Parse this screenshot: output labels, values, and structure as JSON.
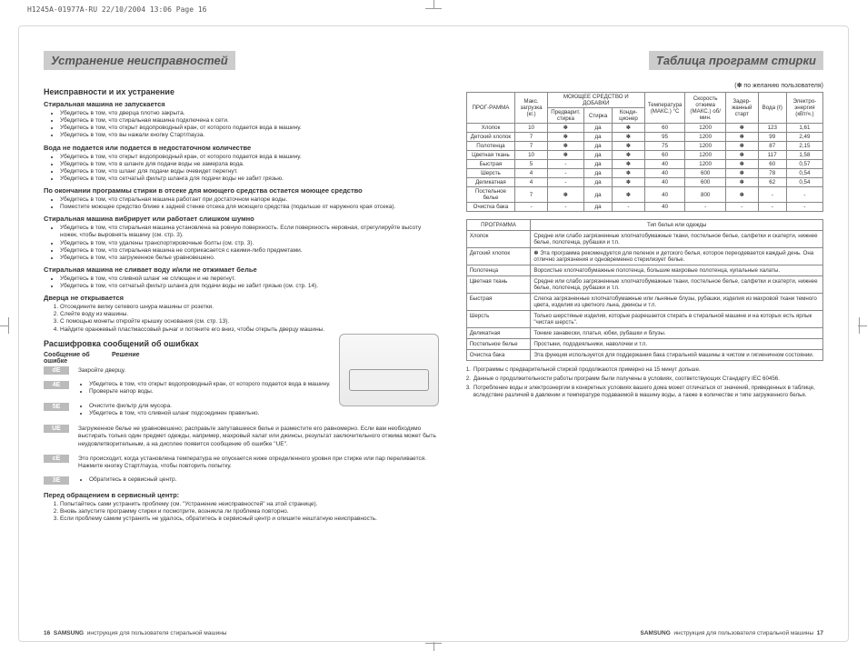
{
  "header_meta": "H1245A-01977A-RU  22/10/2004  13:06  Page 16",
  "section_left_title": "Устранение неисправностей",
  "section_right_title": "Таблица программ стирки",
  "left": {
    "h3_1": "Неисправности и их устранение",
    "p1": "Стиральная машина не запускается",
    "p1_items": [
      "Убедитесь в том, что дверца плотно закрыта.",
      "Убедитесь в том, что стиральная машина подключена к сети.",
      "Убедитесь в том, что открыт водопроводный кран, от которого подается вода в машину.",
      "Убедитесь в том, что вы нажали кнопку Старт/пауза."
    ],
    "p2": "Вода не подается или подается в недостаточном количестве",
    "p2_items": [
      "Убедитесь в том, что открыт водопроводный кран, от которого подается вода в машину.",
      "Убедитесь в том, что в шланге для подачи воды не замерзла вода.",
      "Убедитесь в том, что шланг для подачи воды очевидет перегнут.",
      "Убедитесь в том, что сетчатый фильтр шланга для подачи воды не забит грязью."
    ],
    "p3": "По окончании программы стирки в отсеке для моющего средства остается моющее средство",
    "p3_items": [
      "Убедитесь в том, что стиральная машина работает при достаточном напоре воды.",
      "Поместите моющее средство ближе к задней стенке отсека для моющего средства (подальше от наружного края отсека)."
    ],
    "p4": "Стиральная машина вибрирует или работает слишком шумно",
    "p4_items": [
      "Убедитесь в том, что стиральная машина установлена на ровную поверхность. Если поверхность неровная, отрегулируйте высоту ножек, чтобы выровнять машину (см. стр. 3).",
      "Убедитесь в том, что удалены транспортировочные болты (см. стр. 3).",
      "Убедитесь в том, что стиральная машина не соприкасается с какими-либо предметами.",
      "Убедитесь в том, что загруженное белье уравновешено."
    ],
    "p5": "Стиральная машина не сливает воду и/или не отжимает белье",
    "p5_items": [
      "Убедитесь в том, что сливной шланг не сплющен и не перегнут.",
      "Убедитесь в том, что сетчатый фильтр шланга для подачи воды не забит грязью (см. стр. 14)."
    ],
    "p6": "Дверца не открывается",
    "p6_items": [
      "Отсоедините вилку сетевого шнура машины от розетки.",
      "Слейте воду из машины.",
      "С помощью монеты откройте крышку основания (см. стр. 13).",
      "Найдите оранжевый пластмассовый рычаг и потяните его вниз, чтобы открыть дверцу машины."
    ],
    "h3_2": "Расшифровка сообщений об ошибках",
    "err_header_code": "Сообщение об ошибке",
    "err_header_sol": "Решение",
    "errors": [
      {
        "code": "dE",
        "sol_text": "Закройте дверцу."
      },
      {
        "code": "4E",
        "sol_items": [
          "Убедитесь в том, что открыт водопроводный кран, от которого подается вода в машину.",
          "Проверьте напор воды."
        ]
      },
      {
        "code": "5E",
        "sol_items": [
          "Очистите фильтр для мусора.",
          "Убедитесь в том, что сливной шланг подсоединен правильно."
        ]
      },
      {
        "code": "UE",
        "sol_text": "Загруженное белье не уравновешено; расправьте запутавшееся белье и разместите его равномерно.\nЕсли вам необходимо выстирать только один предмет одежды, например, махровый халат или джинсы, результат заключительного отжима может быть неудовлетворительным, а на дисплее появится сообщение об ошибке \"UE\"."
      },
      {
        "code": "cE",
        "sol_text": "Это происходит, когда установлена температура не опускается ниже определенного уровня при стирке или пар переливается. Нажмите кнопку Старт/пауза, чтобы повторить попытку."
      },
      {
        "code": "3E",
        "sol_items": [
          "Обратитесь в сервисный центр."
        ]
      }
    ],
    "before_service_h": "Перед обращением в сервисный центр:",
    "before_service": [
      "Попытайтесь сами устранить проблему (см. \"Устранение неисправностей\" на этой странице).",
      "Вновь запустите программу стирки и посмотрите, возникла ли проблема повторно.",
      "Если проблему самим устранить не удалось, обратитесь в сервисный центр и опишите нештатную неисправность."
    ]
  },
  "right": {
    "note_star": "(✽ по желанию пользователя)",
    "wash_headers": {
      "prog": "ПРОГ-РАММА",
      "maxload": "Макс. загрузка (кг.)",
      "deterg": "МОЮЩЕЕ СРЕДСТВО И ДОБАВКИ",
      "sub_prew": "Предварит. стирка",
      "sub_wash": "Стирка",
      "sub_cond": "Конди-ционер",
      "temp": "Температура (МАКС.) °C",
      "spin": "Скорость отжима (МАКС.) об/мин.",
      "delay": "Задер-жанный старт",
      "water": "Вода (ℓ)",
      "energy": "Электро-энергия (кВт/ч.)"
    },
    "wash_rows": [
      {
        "prog": "Хлопок",
        "load": "10",
        "pre": "✽",
        "wash": "да",
        "cond": "✽",
        "temp": "60",
        "spin": "1200",
        "delay": "✽",
        "water": "123",
        "energy": "1,61"
      },
      {
        "prog": "Детский хлопок",
        "load": "7",
        "pre": "✽",
        "wash": "да",
        "cond": "✽",
        "temp": "95",
        "spin": "1200",
        "delay": "✽",
        "water": "99",
        "energy": "2,49"
      },
      {
        "prog": "Полотенца",
        "load": "7",
        "pre": "✽",
        "wash": "да",
        "cond": "✽",
        "temp": "75",
        "spin": "1200",
        "delay": "✽",
        "water": "87",
        "energy": "2,15"
      },
      {
        "prog": "Цветная ткань",
        "load": "10",
        "pre": "✽",
        "wash": "да",
        "cond": "✽",
        "temp": "60",
        "spin": "1200",
        "delay": "✽",
        "water": "117",
        "energy": "1,58"
      },
      {
        "prog": "Быстрая",
        "load": "5",
        "pre": "-",
        "wash": "да",
        "cond": "✽",
        "temp": "40",
        "spin": "1200",
        "delay": "✽",
        "water": "60",
        "energy": "0,57"
      },
      {
        "prog": "Шерсть",
        "load": "4",
        "pre": "-",
        "wash": "да",
        "cond": "✽",
        "temp": "40",
        "spin": "600",
        "delay": "✽",
        "water": "78",
        "energy": "0,54"
      },
      {
        "prog": "Деликатная",
        "load": "4",
        "pre": "-",
        "wash": "да",
        "cond": "✽",
        "temp": "40",
        "spin": "600",
        "delay": "✽",
        "water": "62",
        "energy": "0,54"
      },
      {
        "prog": "Постельное белье",
        "load": "7",
        "pre": "✽",
        "wash": "да",
        "cond": "✽",
        "temp": "40",
        "spin": "800",
        "delay": "✽",
        "water": "-",
        "energy": "-"
      },
      {
        "prog": "Очистка бака",
        "load": "-",
        "pre": "-",
        "wash": "да",
        "cond": "-",
        "temp": "40",
        "spin": "-",
        "delay": "-",
        "water": "-",
        "energy": "-"
      }
    ],
    "desc_header_prog": "ПРОГРАММА",
    "desc_header_type": "Тип белья или одежды",
    "desc_rows": [
      {
        "p": "Хлопок",
        "d": "Средне или слабо загрязненные хлопчатобумажные ткани, постельное белье, салфетки и скатерти, нижнее белье, полотенца, рубашки и т.п."
      },
      {
        "p": "Детский хлопок",
        "d": "✽ Эта программа рекомендуется для пеленок и детского белья, которое переодевается каждый день. Она отлично загрязнения и одновременно стерилизует белье."
      },
      {
        "p": "Полотенца",
        "d": "Ворсистые хлопчатобумажные полотенца, большие махровые полотенца, купальные халаты."
      },
      {
        "p": "Цветная ткань",
        "d": "Средне или слабо загрязненные хлопчатобумажные ткани, постельное белье, салфетки и скатерти, нижнее белье, полотенца, рубашки и т.п."
      },
      {
        "p": "Быстрая",
        "d": "Слегка загрязненные хлопчатобумажные или льняные блузы, рубашки, изделия из махровой ткани темного цвета, изделия из цветного льна, джинсы и т.п."
      },
      {
        "p": "Шерсть",
        "d": "Только шерстяные изделия, которые разрешается стирать в стиральной машине и на которых есть ярлык \"чистая шерсть\"."
      },
      {
        "p": "Деликатная",
        "d": "Тонкие занавески, платья, юбки, рубашки и блузы."
      },
      {
        "p": "Постельное белье",
        "d": "Простыни, пододеяльники, наволочки и т.п."
      },
      {
        "p": "Очистка бака",
        "d": "Эта функция используется для поддержания бака стиральной машины в чистом и гигиеничном состоянии."
      }
    ],
    "footnotes": [
      "Программы с предварительной стиркой продолжаются примерно на 15 минут дольше.",
      "Данные о продолжительности работы программ были получены в условиях, соответствующих Стандарту IEC 60456.",
      "Потребление воды и электроэнергии в конкретных условиях вашего дома может отличаться от значений, приведенных в таблице, вследствие различий в давлении и температуре подаваемой в машину воды, а также в количестве и типе загруженного белья."
    ]
  },
  "footer_left_page": "16",
  "footer_brand": "SAMSUNG",
  "footer_text": "инструкция для пользователя стиральной машины",
  "footer_right_page": "17"
}
